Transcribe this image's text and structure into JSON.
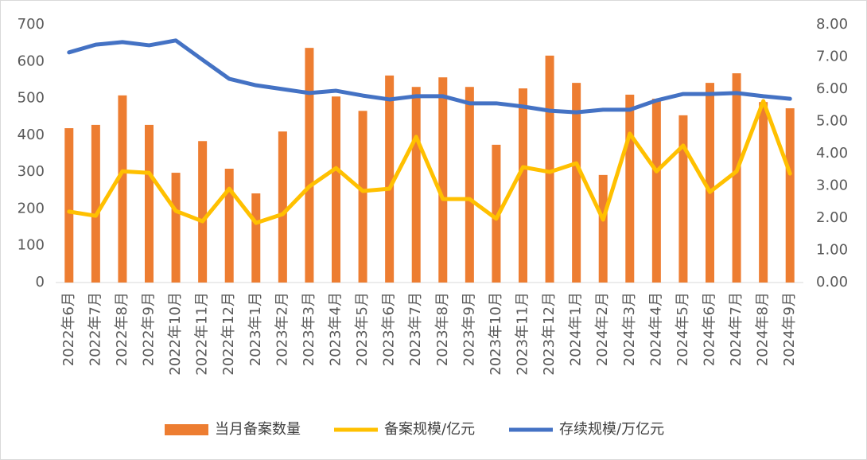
{
  "chart_data": {
    "type": "bar-line",
    "categories": [
      "2022年6月",
      "2022年7月",
      "2022年8月",
      "2022年9月",
      "2022年10月",
      "2022年11月",
      "2022年12月",
      "2023年1月",
      "2023年2月",
      "2023年3月",
      "2023年4月",
      "2023年5月",
      "2023年6月",
      "2023年7月",
      "2023年8月",
      "2023年9月",
      "2023年10月",
      "2023年11月",
      "2023年12月",
      "2024年1月",
      "2024年2月",
      "2024年3月",
      "2024年4月",
      "2024年5月",
      "2024年6月",
      "2024年7月",
      "2024年8月",
      "2024年9月"
    ],
    "series": [
      {
        "name": "当月备案数量",
        "type": "bar",
        "color": "#ED7D31",
        "values": [
          419,
          428,
          508,
          428,
          298,
          384,
          309,
          242,
          410,
          637,
          505,
          466,
          562,
          531,
          557,
          531,
          374,
          527,
          616,
          542,
          292,
          510,
          499,
          454,
          542,
          568,
          490,
          473
        ]
      },
      {
        "name": "备案规模/亿元",
        "type": "line",
        "axis": "y2",
        "color": "#FFC000",
        "values": [
          2.2,
          2.07,
          3.45,
          3.4,
          2.22,
          1.9,
          2.91,
          1.85,
          2.12,
          2.98,
          3.55,
          2.84,
          2.91,
          4.52,
          2.59,
          2.59,
          1.98,
          3.58,
          3.43,
          3.7,
          1.95,
          4.62,
          3.45,
          4.25,
          2.81,
          3.45,
          5.63,
          3.38
        ]
      },
      {
        "name": "存续规模/万亿元",
        "type": "line",
        "axis": "y2",
        "color": "#4472C4",
        "values": [
          7.14,
          7.38,
          7.46,
          7.36,
          7.51,
          6.91,
          6.32,
          6.12,
          6.0,
          5.88,
          5.95,
          5.8,
          5.68,
          5.78,
          5.78,
          5.56,
          5.56,
          5.46,
          5.33,
          5.28,
          5.36,
          5.36,
          5.65,
          5.85,
          5.85,
          5.88,
          5.78,
          5.7
        ]
      }
    ],
    "ylim": [
      0,
      700
    ],
    "yticks": [
      0,
      100,
      200,
      300,
      400,
      500,
      600,
      700
    ],
    "y2lim": [
      0,
      8
    ],
    "y2ticks": [
      {
        "value": 0,
        "label": "0.00"
      },
      {
        "value": 1,
        "label": "1.00"
      },
      {
        "value": 2,
        "label": "2.00"
      },
      {
        "value": 3,
        "label": "3.00"
      },
      {
        "value": 4,
        "label": "4.00"
      },
      {
        "value": 5,
        "label": "5.00"
      },
      {
        "value": 6,
        "label": "6.00"
      },
      {
        "value": 7,
        "label": "7.00"
      },
      {
        "value": 8,
        "label": "8.00"
      }
    ],
    "legend": "bottom"
  }
}
